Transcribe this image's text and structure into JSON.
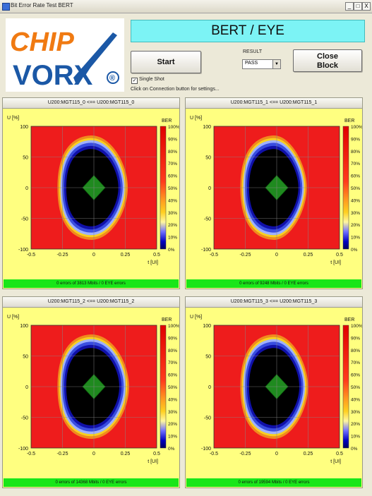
{
  "window": {
    "title": "Bit Error Rate Test BERT",
    "buttons": [
      "_",
      "□",
      "X"
    ]
  },
  "logo": {
    "line1": "CHIP",
    "line2": "VORX",
    "mark": "®"
  },
  "header": {
    "banner": "BERT / EYE"
  },
  "controls": {
    "start_label": "Start",
    "close_label": "Close\nBlock",
    "close_line1": "Close",
    "close_line2": "Block",
    "result_label": "RESULT",
    "result_value": "PASS",
    "single_shot_label": "Single Shot",
    "single_shot_checked": true,
    "hint": "Click on Connection button for settings..."
  },
  "plot_axes": {
    "y_label": "U [%]",
    "x_label": "t [UI]",
    "y_ticks": [
      "100",
      "50",
      "0",
      "-50",
      "-100"
    ],
    "x_ticks": [
      "-0.5",
      "-0.25",
      "0",
      "0.25",
      "0.5"
    ],
    "colorbar_title": "BER",
    "colorbar_ticks": [
      "100%",
      "90%",
      "80%",
      "70%",
      "60%",
      "50%",
      "40%",
      "30%",
      "20%",
      "10%",
      "0%"
    ]
  },
  "panels": [
    {
      "title": "U200:MGT115_0 <== U200:MGT115_0",
      "status": "0 errors of 3813 Mbits / 0 EYE errors"
    },
    {
      "title": "U200:MGT115_1 <== U200:MGT115_1",
      "status": "0 errors of 9248 Mbits / 0 EYE errors"
    },
    {
      "title": "U200:MGT115_2 <== U200:MGT115_2",
      "status": "0 errors of 14368 Mbits / 0 EYE errors"
    },
    {
      "title": "U200:MGT115_3 <== U200:MGT115_3",
      "status": "0 errors of 19594 Mbits / 0 EYE errors"
    }
  ],
  "colors": {
    "eye_outer": "#ee1c1c",
    "eye_inner": "#000000",
    "eye_mask": "#1f8a1f",
    "panel_bg": "#ffff80",
    "status_ok": "#19e619",
    "banner": "#7cf3f5"
  }
}
